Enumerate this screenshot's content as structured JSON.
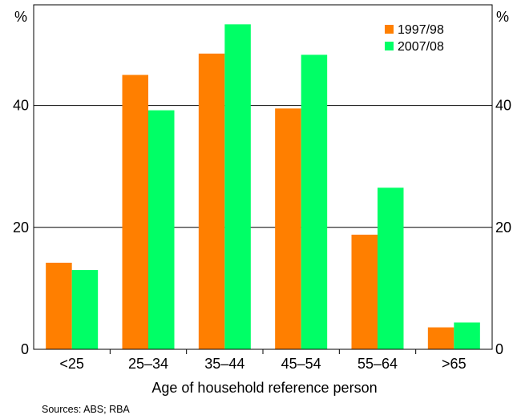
{
  "chart_data": {
    "type": "bar",
    "categories": [
      "<25",
      "25–34",
      "35–44",
      "45–54",
      "55–64",
      ">65"
    ],
    "series": [
      {
        "name": "1997/98",
        "values": [
          14.2,
          45.0,
          48.5,
          39.5,
          18.8,
          3.6
        ],
        "color": "#ff7f00"
      },
      {
        "name": "2007/08",
        "values": [
          13.0,
          39.2,
          53.3,
          48.3,
          26.5,
          4.4
        ],
        "color": "#00ff66"
      }
    ],
    "yticks": [
      0,
      20,
      40
    ],
    "ylim": [
      0,
      56.5
    ],
    "y_unit_left": "%",
    "y_unit_right": "%",
    "xlabel": "Age of household reference person",
    "legend_placement": "top-right",
    "grid": true
  },
  "source": "Sources: ABS; RBA"
}
